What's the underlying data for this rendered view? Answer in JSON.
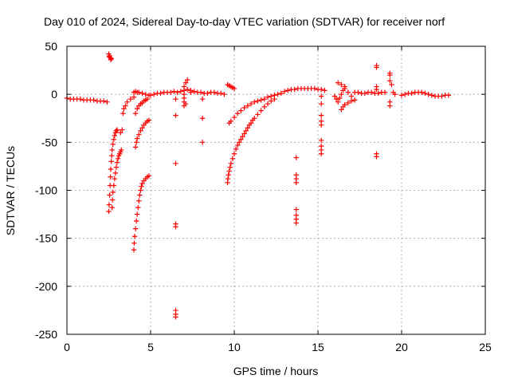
{
  "chart_data": {
    "type": "scatter",
    "title": "Day 010 of 2024, Sidereal Day-to-day VTEC variation (SDTVAR) for receiver norf",
    "xlabel": "GPS time / hours",
    "ylabel": "SDTVAR / TECUs",
    "xlim": [
      0,
      25
    ],
    "ylim": [
      -250,
      50
    ],
    "xticks": [
      0,
      5,
      10,
      15,
      20,
      25
    ],
    "yticks": [
      -250,
      -200,
      -150,
      -100,
      -50,
      0,
      50
    ],
    "grid": true,
    "marker": "plus",
    "color": "#ff0000",
    "series": [
      {
        "name": "base-0-2.5",
        "points": [
          [
            0.0,
            -4
          ],
          [
            0.2,
            -5
          ],
          [
            0.4,
            -5
          ],
          [
            0.6,
            -5
          ],
          [
            0.8,
            -5
          ],
          [
            1.0,
            -6
          ],
          [
            1.2,
            -6
          ],
          [
            1.4,
            -6
          ],
          [
            1.6,
            -6
          ],
          [
            1.8,
            -7
          ],
          [
            2.0,
            -7
          ],
          [
            2.2,
            -7
          ],
          [
            2.4,
            -8
          ]
        ]
      },
      {
        "name": "spike-2.5",
        "points": [
          [
            2.5,
            42
          ],
          [
            2.55,
            40
          ],
          [
            2.6,
            38
          ],
          [
            2.65,
            37
          ],
          [
            2.52,
            39
          ],
          [
            2.62,
            36
          ]
        ]
      },
      {
        "name": "arc-2.5",
        "points": [
          [
            2.5,
            -122
          ],
          [
            2.52,
            -115
          ],
          [
            2.55,
            -105
          ],
          [
            2.58,
            -95
          ],
          [
            2.6,
            -86
          ],
          [
            2.62,
            -78
          ],
          [
            2.65,
            -70
          ],
          [
            2.68,
            -64
          ],
          [
            2.7,
            -58
          ],
          [
            2.75,
            -52
          ],
          [
            2.8,
            -47
          ],
          [
            2.85,
            -43
          ],
          [
            2.9,
            -40
          ],
          [
            2.95,
            -38
          ],
          [
            3.0,
            -37
          ]
        ]
      },
      {
        "name": "arc-2.7",
        "points": [
          [
            2.7,
            -118
          ],
          [
            2.72,
            -110
          ],
          [
            2.75,
            -102
          ],
          [
            2.8,
            -95
          ],
          [
            2.85,
            -88
          ],
          [
            2.9,
            -82
          ],
          [
            2.95,
            -76
          ],
          [
            3.0,
            -71
          ],
          [
            3.05,
            -67
          ],
          [
            3.1,
            -64
          ],
          [
            3.15,
            -62
          ],
          [
            3.2,
            -60
          ],
          [
            3.25,
            -58
          ]
        ]
      },
      {
        "name": "arc-3.3",
        "points": [
          [
            3.2,
            -40
          ],
          [
            3.3,
            -37
          ],
          [
            3.35,
            -20
          ],
          [
            3.4,
            -15
          ],
          [
            3.5,
            -12
          ],
          [
            3.6,
            -8
          ],
          [
            3.8,
            -5
          ],
          [
            4.0,
            -3
          ]
        ]
      },
      {
        "name": "arc-4.0",
        "points": [
          [
            4.0,
            -162
          ],
          [
            4.02,
            -155
          ],
          [
            4.05,
            -148
          ],
          [
            4.1,
            -140
          ],
          [
            4.15,
            -132
          ],
          [
            4.2,
            -125
          ],
          [
            4.25,
            -118
          ],
          [
            4.3,
            -111
          ],
          [
            4.35,
            -105
          ],
          [
            4.4,
            -100
          ],
          [
            4.45,
            -96
          ],
          [
            4.5,
            -93
          ],
          [
            4.6,
            -90
          ],
          [
            4.7,
            -88
          ],
          [
            4.8,
            -86
          ],
          [
            4.9,
            -85
          ]
        ]
      },
      {
        "name": "arc-4.1",
        "points": [
          [
            4.1,
            -55
          ],
          [
            4.15,
            -50
          ],
          [
            4.2,
            -46
          ],
          [
            4.3,
            -42
          ],
          [
            4.4,
            -38
          ],
          [
            4.5,
            -35
          ],
          [
            4.6,
            -32
          ],
          [
            4.7,
            -30
          ],
          [
            4.8,
            -28
          ],
          [
            4.9,
            -27
          ]
        ]
      },
      {
        "name": "arc-4.1b",
        "points": [
          [
            4.1,
            -20
          ],
          [
            4.2,
            -15
          ],
          [
            4.3,
            -12
          ],
          [
            4.4,
            -10
          ],
          [
            4.5,
            -9
          ],
          [
            4.6,
            -7
          ],
          [
            4.7,
            -6
          ],
          [
            4.8,
            -5
          ]
        ]
      },
      {
        "name": "hi-4.2",
        "points": [
          [
            4.0,
            2
          ],
          [
            4.1,
            3
          ],
          [
            4.2,
            2
          ],
          [
            4.3,
            2
          ],
          [
            4.5,
            1
          ],
          [
            4.7,
            0
          ],
          [
            4.9,
            -1
          ]
        ]
      },
      {
        "name": "track-5-7",
        "points": [
          [
            5.0,
            -1
          ],
          [
            5.2,
            0
          ],
          [
            5.4,
            1
          ],
          [
            5.6,
            1
          ],
          [
            5.8,
            2
          ],
          [
            6.0,
            2
          ],
          [
            6.2,
            2
          ],
          [
            6.4,
            3
          ],
          [
            6.6,
            2
          ],
          [
            6.8,
            3
          ],
          [
            7.0,
            4
          ],
          [
            7.2,
            5
          ],
          [
            7.4,
            4
          ]
        ]
      },
      {
        "name": "col-6.5",
        "points": [
          [
            6.5,
            -72
          ],
          [
            6.5,
            -135
          ],
          [
            6.5,
            -138
          ],
          [
            6.5,
            -225
          ],
          [
            6.5,
            -229
          ],
          [
            6.5,
            -232
          ],
          [
            6.5,
            -5
          ],
          [
            6.5,
            -22
          ]
        ]
      },
      {
        "name": "col-7",
        "points": [
          [
            7.0,
            -12
          ],
          [
            7.0,
            -8
          ],
          [
            7.0,
            -4
          ],
          [
            7.0,
            0
          ],
          [
            7.0,
            4
          ],
          [
            7.0,
            8
          ],
          [
            7.1,
            12
          ],
          [
            7.1,
            -10
          ],
          [
            7.2,
            15
          ]
        ]
      },
      {
        "name": "track-7-9.5",
        "points": [
          [
            7.4,
            2
          ],
          [
            7.6,
            3
          ],
          [
            7.8,
            2
          ],
          [
            8.0,
            2
          ],
          [
            8.2,
            1
          ],
          [
            8.4,
            1
          ],
          [
            8.6,
            2
          ],
          [
            8.8,
            2
          ],
          [
            9.0,
            1
          ],
          [
            9.2,
            1
          ],
          [
            9.4,
            0
          ],
          [
            8.1,
            -25
          ],
          [
            8.1,
            -50
          ],
          [
            8.1,
            -5
          ]
        ]
      },
      {
        "name": "spike-9.7",
        "points": [
          [
            9.6,
            10
          ],
          [
            9.7,
            9
          ],
          [
            9.8,
            8
          ],
          [
            9.9,
            7
          ],
          [
            10.0,
            6
          ]
        ]
      },
      {
        "name": "arc-9.7",
        "points": [
          [
            9.6,
            -92
          ],
          [
            9.62,
            -88
          ],
          [
            9.65,
            -84
          ],
          [
            9.7,
            -80
          ],
          [
            9.75,
            -76
          ],
          [
            9.8,
            -72
          ],
          [
            9.9,
            -67
          ],
          [
            10.0,
            -62
          ],
          [
            10.1,
            -57
          ],
          [
            10.2,
            -53
          ],
          [
            10.3,
            -50
          ],
          [
            10.4,
            -47
          ],
          [
            10.5,
            -44
          ],
          [
            10.6,
            -41
          ],
          [
            10.7,
            -38
          ],
          [
            10.8,
            -35
          ],
          [
            10.9,
            -32
          ],
          [
            11.0,
            -30
          ],
          [
            11.1,
            -27
          ],
          [
            11.2,
            -25
          ],
          [
            11.4,
            -21
          ],
          [
            11.6,
            -17
          ],
          [
            11.8,
            -13
          ],
          [
            12.0,
            -10
          ],
          [
            12.2,
            -7
          ],
          [
            12.4,
            -5
          ]
        ]
      },
      {
        "name": "arc-9.8",
        "points": [
          [
            9.7,
            -30
          ],
          [
            9.8,
            -28
          ],
          [
            10.0,
            -24
          ],
          [
            10.2,
            -20
          ],
          [
            10.4,
            -17
          ],
          [
            10.6,
            -14
          ],
          [
            10.8,
            -12
          ],
          [
            11.0,
            -10
          ],
          [
            11.2,
            -8
          ],
          [
            11.4,
            -7
          ],
          [
            11.6,
            -6
          ],
          [
            11.8,
            -5
          ]
        ]
      },
      {
        "name": "track-12-15",
        "points": [
          [
            12.0,
            -3
          ],
          [
            12.2,
            -2
          ],
          [
            12.4,
            -1
          ],
          [
            12.6,
            0
          ],
          [
            12.8,
            1
          ],
          [
            13.0,
            3
          ],
          [
            13.2,
            4
          ],
          [
            13.4,
            5
          ],
          [
            13.6,
            5
          ],
          [
            13.8,
            6
          ],
          [
            14.0,
            6
          ],
          [
            14.2,
            6
          ],
          [
            14.4,
            6
          ],
          [
            14.6,
            6
          ],
          [
            14.8,
            6
          ],
          [
            15.0,
            5
          ],
          [
            15.2,
            5
          ],
          [
            15.4,
            4
          ]
        ]
      },
      {
        "name": "col-13.7",
        "points": [
          [
            13.7,
            -66
          ],
          [
            13.7,
            -84
          ],
          [
            13.7,
            -88
          ],
          [
            13.7,
            -92
          ],
          [
            13.7,
            -120
          ],
          [
            13.7,
            -126
          ],
          [
            13.7,
            -130
          ],
          [
            13.7,
            -134
          ]
        ]
      },
      {
        "name": "col-15.2",
        "points": [
          [
            15.2,
            -22
          ],
          [
            15.2,
            -28
          ],
          [
            15.2,
            -32
          ],
          [
            15.2,
            -48
          ],
          [
            15.2,
            -54
          ],
          [
            15.2,
            -58
          ],
          [
            15.2,
            -62
          ],
          [
            15.2,
            -2
          ],
          [
            15.2,
            -10
          ]
        ]
      },
      {
        "name": "track-16-17",
        "points": [
          [
            16.0,
            -2
          ],
          [
            16.1,
            -5
          ],
          [
            16.2,
            -8
          ],
          [
            16.3,
            -4
          ],
          [
            16.4,
            0
          ],
          [
            16.5,
            4
          ],
          [
            16.6,
            8
          ],
          [
            16.2,
            12
          ],
          [
            16.4,
            10
          ],
          [
            16.6,
            6
          ],
          [
            16.8,
            2
          ],
          [
            17.0,
            -2
          ]
        ]
      },
      {
        "name": "arc-16.5",
        "points": [
          [
            16.4,
            -16
          ],
          [
            16.5,
            -13
          ],
          [
            16.6,
            -11
          ],
          [
            16.8,
            -9
          ],
          [
            17.0,
            -7
          ],
          [
            17.2,
            -6
          ]
        ]
      },
      {
        "name": "track-17-18.5",
        "points": [
          [
            17.2,
            2
          ],
          [
            17.4,
            2
          ],
          [
            17.6,
            1
          ],
          [
            17.8,
            1
          ],
          [
            18.0,
            2
          ],
          [
            18.2,
            2
          ],
          [
            18.4,
            1
          ],
          [
            18.6,
            1
          ],
          [
            18.8,
            2
          ],
          [
            19.0,
            2
          ]
        ]
      },
      {
        "name": "col-18.5",
        "points": [
          [
            18.5,
            30
          ],
          [
            18.5,
            28
          ],
          [
            18.5,
            -62
          ],
          [
            18.5,
            -65
          ],
          [
            18.5,
            8
          ],
          [
            18.5,
            5
          ]
        ]
      },
      {
        "name": "col-19.3",
        "points": [
          [
            19.3,
            22
          ],
          [
            19.3,
            20
          ],
          [
            19.3,
            14
          ],
          [
            19.4,
            10
          ],
          [
            19.3,
            -8
          ],
          [
            19.3,
            -12
          ],
          [
            19.5,
            2
          ],
          [
            19.6,
            0
          ]
        ]
      },
      {
        "name": "track-20-23",
        "points": [
          [
            20.0,
            -1
          ],
          [
            20.2,
            0
          ],
          [
            20.4,
            1
          ],
          [
            20.6,
            1
          ],
          [
            20.8,
            2
          ],
          [
            21.0,
            2
          ],
          [
            21.2,
            2
          ],
          [
            21.4,
            1
          ],
          [
            21.6,
            0
          ],
          [
            21.8,
            -1
          ],
          [
            22.0,
            -2
          ],
          [
            22.2,
            -2
          ],
          [
            22.4,
            -2
          ],
          [
            22.6,
            -1
          ],
          [
            22.8,
            -1
          ]
        ]
      }
    ]
  }
}
